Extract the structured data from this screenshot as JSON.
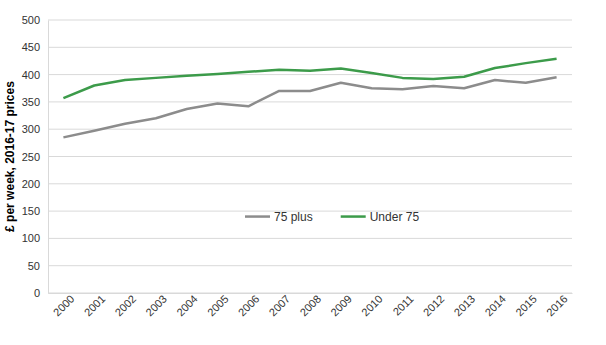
{
  "chart_data": {
    "type": "line",
    "y_label": "£ per week, 2016-17 prices",
    "categories": [
      "2000",
      "2001",
      "2002",
      "2003",
      "2004",
      "2005",
      "2006",
      "2007",
      "2008",
      "2009",
      "2010",
      "2011",
      "2012",
      "2013",
      "2014",
      "2015",
      "2016"
    ],
    "series": [
      {
        "name": "75 plus",
        "color": "#8c8c8c",
        "values": [
          285,
          297,
          310,
          320,
          337,
          347,
          342,
          370,
          370,
          385,
          375,
          373,
          379,
          375,
          390,
          385,
          395
        ]
      },
      {
        "name": "Under 75",
        "color": "#3c9b4a",
        "values": [
          357,
          380,
          390,
          394,
          398,
          401,
          405,
          409,
          407,
          411,
          403,
          394,
          392,
          396,
          412,
          421,
          429
        ]
      }
    ],
    "ylim": [
      0,
      500
    ],
    "yticks": [
      0,
      50,
      100,
      150,
      200,
      250,
      300,
      350,
      400,
      450,
      500
    ],
    "grid": true,
    "legend": "center"
  }
}
